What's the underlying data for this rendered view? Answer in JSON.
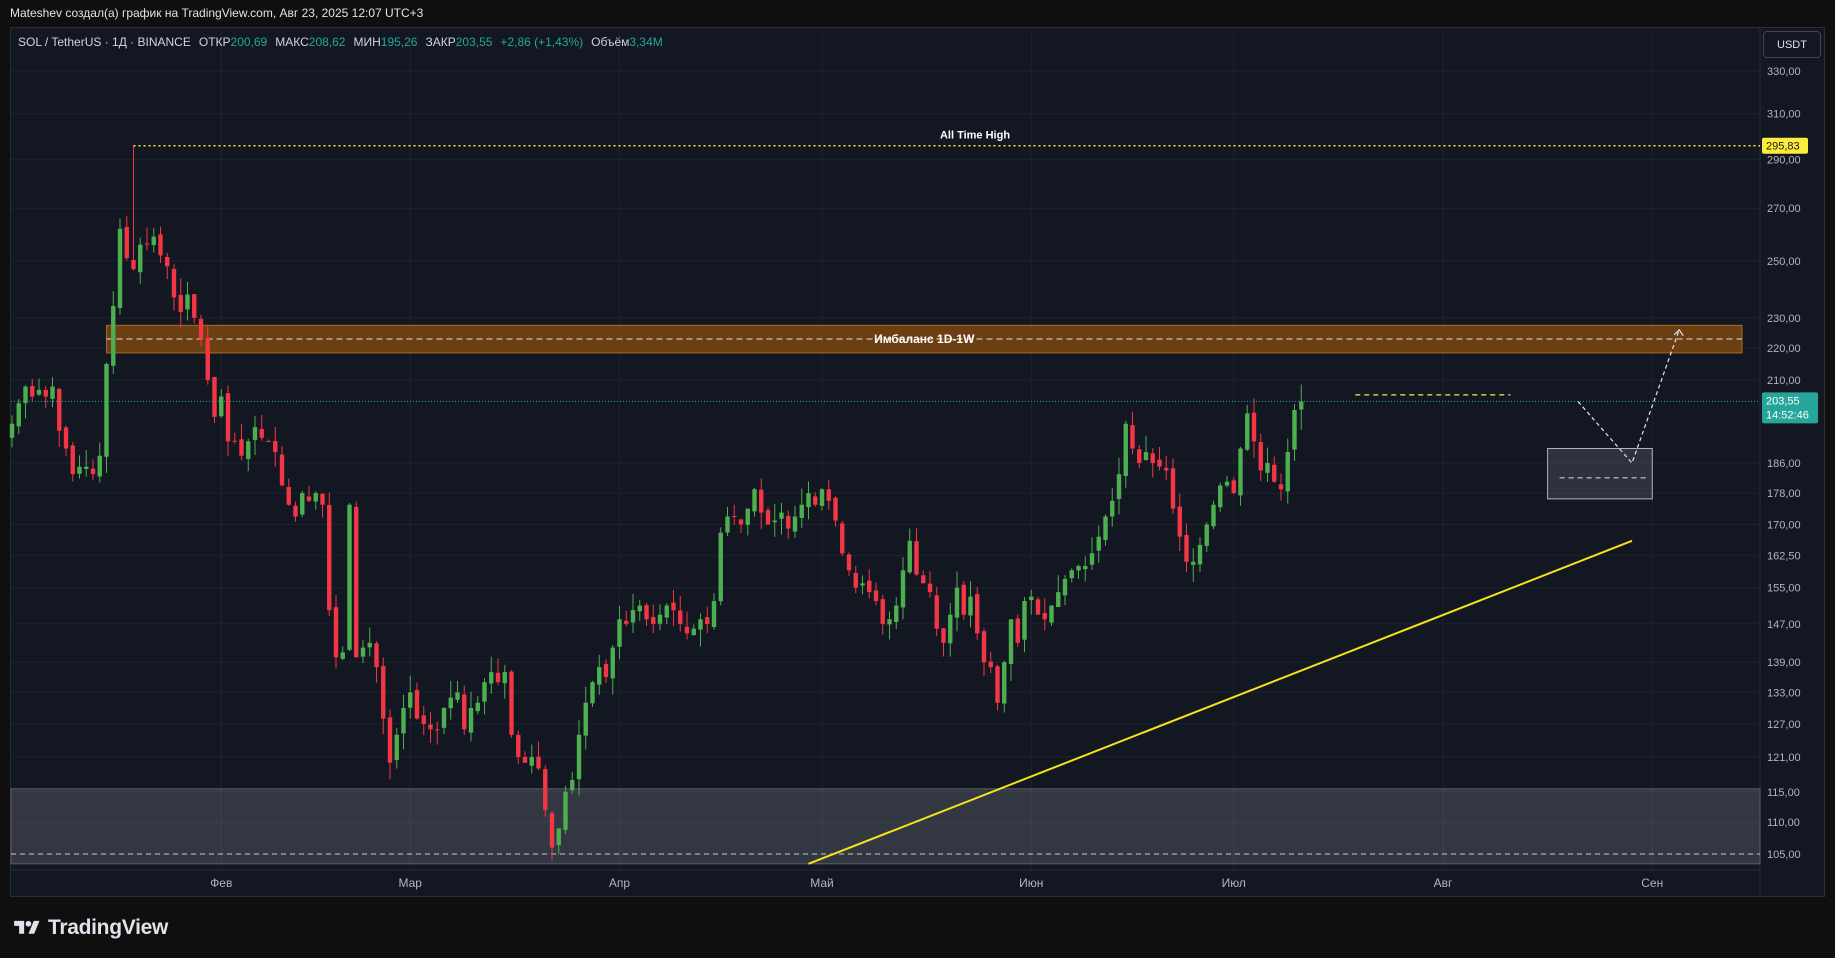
{
  "caption": "Mateshev создал(а) график на TradingView.com, Авг 23, 2025 12:07 UTC+3",
  "legend": {
    "symbol": "SOL / TetherUS · 1Д · BINANCE",
    "open_label": "ОТКР",
    "open": "200,69",
    "high_label": "МАКС",
    "high": "208,62",
    "low_label": "МИН",
    "low": "195,26",
    "close_label": "ЗАКР",
    "close": "203,55",
    "change": "+2,86 (+1,43%)",
    "volume_label": "Объём",
    "volume": "3,34M"
  },
  "currency_button": "USDT",
  "brand": "TradingView",
  "colors": {
    "up": "#26a69a",
    "up_bright": "#4caf50",
    "down": "#f23645",
    "ath": "#ffeb3b",
    "trend": "#f5e21a",
    "zone": "#6b3f12",
    "bg": "#131722"
  },
  "annotations": {
    "ath_label": "All Time High",
    "ath_price": "295,83",
    "imbalance_label": "Имбаланс 1D-1W",
    "last_price": "203,55",
    "countdown": "14:52:46"
  },
  "chart_data": {
    "type": "candlestick",
    "title": "SOL / TetherUS · 1Д · BINANCE",
    "y_ticks": [
      "330,00",
      "310,00",
      "290,00",
      "270,00",
      "250,00",
      "230,00",
      "220,00",
      "210,00",
      "186,00",
      "178,00",
      "170,00",
      "162,50",
      "155,00",
      "147,00",
      "139,00",
      "133,00",
      "127,00",
      "121,00",
      "115,00",
      "110,00",
      "105,00"
    ],
    "y_tick_values": [
      330,
      310,
      290,
      270,
      250,
      230,
      220,
      210,
      186,
      178,
      170,
      162.5,
      155,
      147,
      139,
      133,
      127,
      121,
      115,
      110,
      105
    ],
    "scale": "log",
    "x_ticks": [
      "Фев",
      "Мар",
      "Апр",
      "Май",
      "Июн",
      "Июл",
      "Авг",
      "Сен"
    ],
    "x_tick_dates": [
      "2025-02-01",
      "2025-03-01",
      "2025-04-01",
      "2025-05-01",
      "2025-06-01",
      "2025-07-01",
      "2025-08-01",
      "2025-09-01"
    ],
    "start_date": "2025-01-01",
    "closes": [
      197,
      203,
      208,
      205,
      207,
      205,
      208,
      195,
      190,
      183,
      185,
      185,
      183,
      188,
      215,
      234,
      262,
      251,
      247,
      256,
      256,
      259,
      252,
      248,
      237,
      232,
      238,
      230,
      223,
      210,
      199,
      205,
      192,
      192,
      188,
      192,
      196,
      193,
      192,
      189,
      180,
      175,
      172,
      178,
      176,
      178,
      175,
      150,
      140,
      141,
      175,
      140,
      142,
      143,
      138,
      128,
      120,
      125,
      130,
      133,
      128,
      127,
      126,
      126,
      130,
      132,
      133,
      126,
      130,
      131,
      135,
      137,
      135,
      137,
      125,
      121,
      120,
      121,
      119,
      112,
      106,
      109,
      115,
      117,
      125,
      131,
      135,
      138,
      136,
      142,
      148,
      147,
      150,
      151,
      148,
      147,
      149,
      151,
      150,
      147,
      145,
      146,
      148,
      147,
      152,
      168,
      172,
      172,
      170,
      174,
      179,
      173,
      170,
      171,
      173,
      169,
      172,
      175,
      178,
      175,
      179,
      176,
      171,
      163,
      159,
      155,
      156,
      154,
      152,
      147,
      148,
      151,
      159,
      166,
      158,
      156,
      154,
      146,
      143,
      149,
      155,
      149,
      153,
      145,
      139,
      138,
      131,
      139,
      148,
      143,
      152,
      153,
      149,
      148,
      151,
      154,
      157,
      159,
      160,
      160,
      163,
      167,
      172,
      176,
      183,
      197,
      190,
      186,
      189,
      186,
      185,
      184,
      174,
      167,
      161,
      161,
      165,
      170,
      175,
      180,
      181,
      178,
      190,
      200,
      192,
      184,
      186,
      181,
      179,
      189,
      201,
      203.55
    ],
    "ath": 295.83,
    "ath_date": "2025-01-19",
    "imbalance_zone": [
      218.5,
      227.5
    ],
    "support_zone": [
      103.5,
      115.5
    ],
    "consolidation_box": [
      176.5,
      190
    ],
    "trendline": [
      {
        "date": "2025-04-29",
        "price": 103.5
      },
      {
        "date": "2025-08-29",
        "price": 166
      }
    ],
    "projection": [
      {
        "date": "2025-08-21",
        "price": 203.5
      },
      {
        "date": "2025-08-29",
        "price": 186
      },
      {
        "date": "2025-09-05",
        "price": 226
      }
    ],
    "prev_high_level": 205.5
  }
}
